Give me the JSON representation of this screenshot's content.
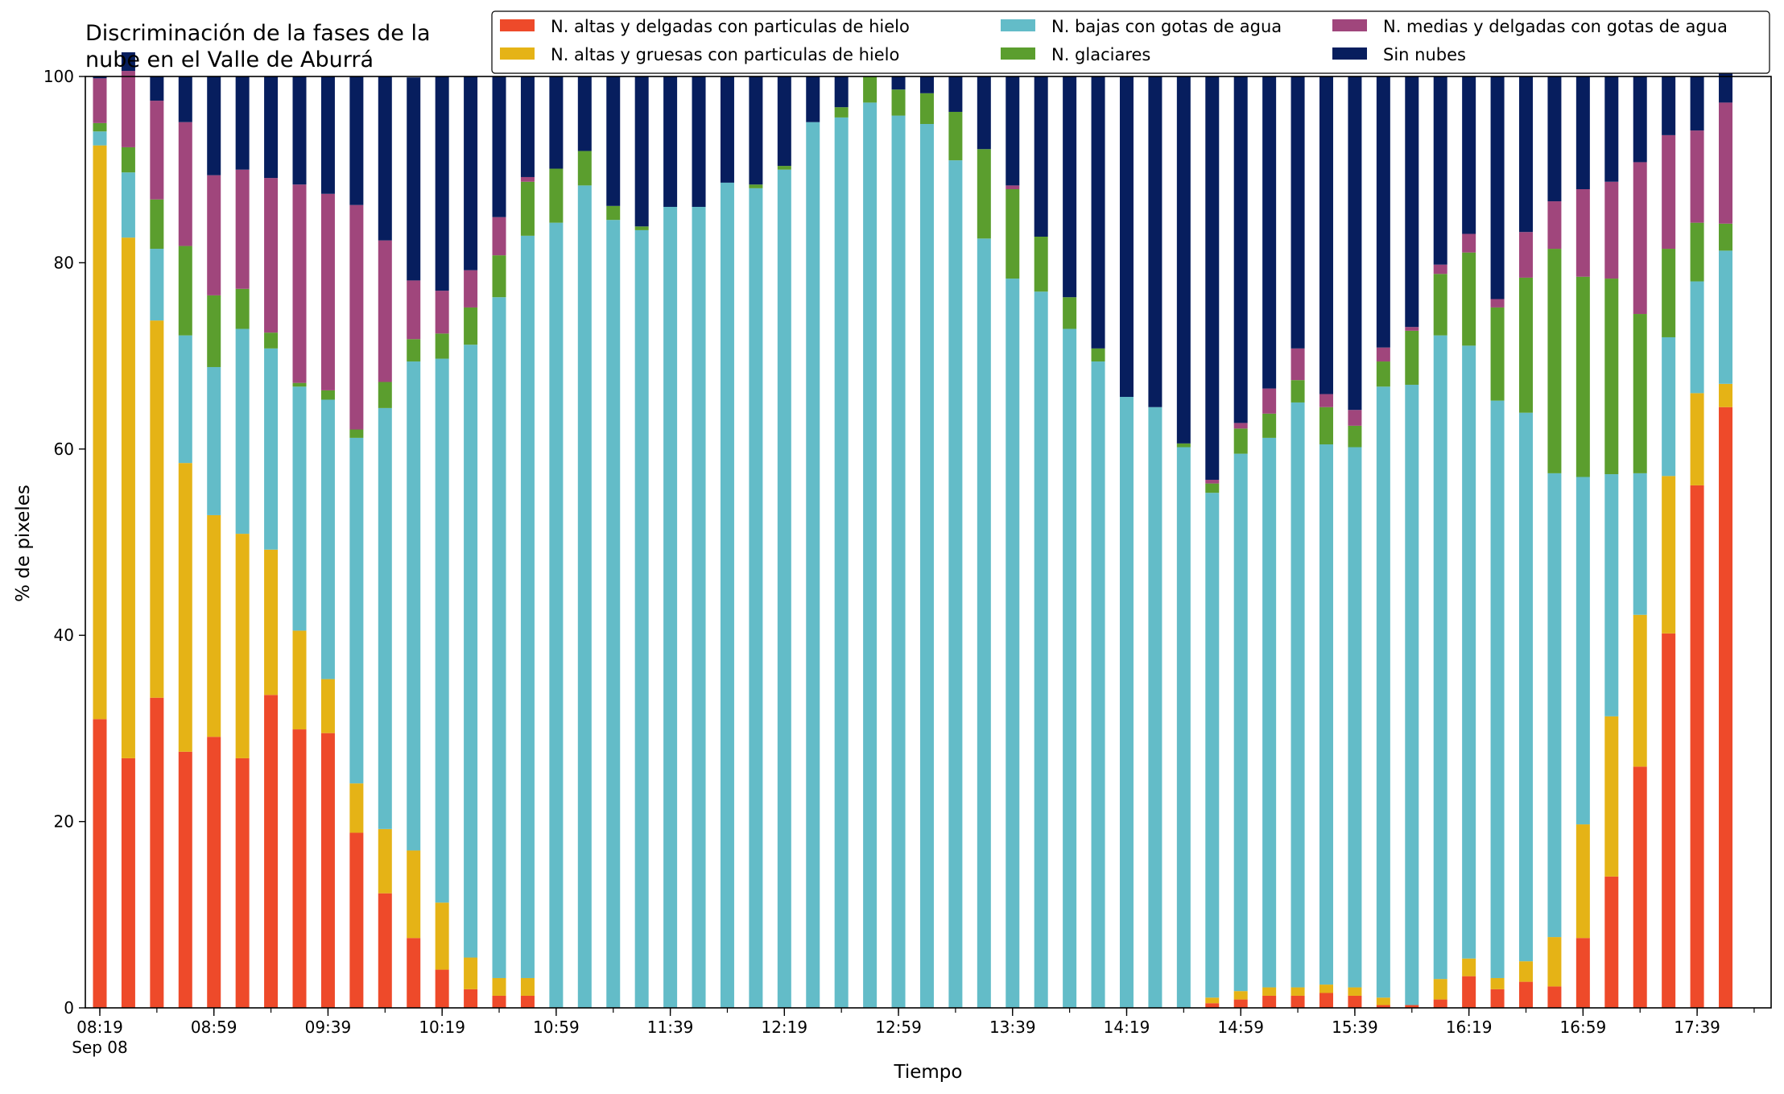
{
  "chart_data": {
    "type": "bar",
    "stacked": true,
    "title": "Discriminación de la fases de la nube en el Valle de Aburrá",
    "title_lines": [
      "Discriminación de la fases de la",
      "nube en el Valle de Aburrá"
    ],
    "xlabel": "Tiempo",
    "ylabel": "% de pixeles",
    "ylim": [
      0,
      100
    ],
    "yticks": [
      0,
      20,
      40,
      60,
      80,
      100
    ],
    "grid": false,
    "legend_position": "top-right",
    "x_start": "08:19",
    "x_step_minutes": 10,
    "xtick_labels": [
      "08:19",
      "08:59",
      "09:39",
      "10:19",
      "10:59",
      "11:39",
      "12:19",
      "12:59",
      "13:39",
      "14:19",
      "14:59",
      "15:39",
      "16:19",
      "16:59",
      "17:39"
    ],
    "xtick_date_label": "Sep 08",
    "categories": [
      "08:19",
      "08:29",
      "08:39",
      "08:49",
      "08:59",
      "09:09",
      "09:19",
      "09:29",
      "09:39",
      "09:49",
      "09:59",
      "10:09",
      "10:19",
      "10:29",
      "10:39",
      "10:49",
      "10:59",
      "11:09",
      "11:19",
      "11:29",
      "11:39",
      "11:49",
      "11:59",
      "12:09",
      "12:19",
      "12:29",
      "12:39",
      "12:49",
      "12:59",
      "13:09",
      "13:19",
      "13:29",
      "13:39",
      "13:49",
      "13:59",
      "14:09",
      "14:19",
      "14:29",
      "14:39",
      "14:49",
      "14:59",
      "15:09",
      "15:19",
      "15:29",
      "15:39",
      "15:49",
      "15:59",
      "16:09",
      "16:19",
      "16:29",
      "16:39",
      "16:49",
      "16:59",
      "17:09",
      "17:19",
      "17:29",
      "17:39",
      "17:49"
    ],
    "series": [
      {
        "name": "N. altas y delgadas con particulas de hielo",
        "color": "#ee4a2a",
        "values": [
          31,
          26.8,
          33.3,
          27.5,
          29.1,
          26.8,
          33.6,
          29.9,
          29.5,
          18.8,
          12.3,
          7.5,
          4.1,
          2,
          1.3,
          1.3,
          0,
          0,
          0,
          0,
          0,
          0,
          0,
          0,
          0,
          0,
          0,
          0,
          0,
          0,
          0,
          0,
          0,
          0,
          0,
          0,
          0,
          0,
          0,
          0.5,
          0.9,
          1.3,
          1.3,
          1.6,
          1.3,
          0.3,
          0.3,
          0.9,
          3.4,
          2,
          2.8,
          2.3,
          7.5,
          14.1,
          25.9,
          40.2,
          56.1,
          64.5
        ]
      },
      {
        "name": "N. altas y gruesas con particulas de hielo",
        "color": "#e5b316",
        "values": [
          61.6,
          55.9,
          40.5,
          31,
          23.8,
          24.1,
          15.6,
          10.6,
          5.8,
          5.3,
          6.9,
          9.4,
          7.2,
          3.4,
          1.9,
          1.9,
          0,
          0,
          0,
          0,
          0,
          0,
          0,
          0,
          0,
          0,
          0,
          0,
          0,
          0,
          0,
          0,
          0,
          0,
          0,
          0,
          0,
          0,
          0,
          0.6,
          0.9,
          0.9,
          0.9,
          0.9,
          0.9,
          0.8,
          0,
          2.2,
          1.9,
          1.2,
          2.2,
          5.3,
          12.2,
          17.2,
          16.3,
          16.9,
          9.9,
          2.5
        ]
      },
      {
        "name": "N. bajas con gotas de agua",
        "color": "#63bcc8",
        "values": [
          1.5,
          7,
          7.7,
          13.7,
          15.9,
          22,
          21.6,
          26.2,
          30,
          37.1,
          45.2,
          52.5,
          58.4,
          65.8,
          73.1,
          79.7,
          84.3,
          88.3,
          84.6,
          83.5,
          86,
          86,
          88.6,
          88,
          90,
          95.1,
          95.6,
          97.2,
          95.8,
          94.9,
          91,
          82.6,
          78.3,
          76.9,
          72.9,
          69.4,
          65.6,
          64.5,
          60.2,
          54.2,
          57.7,
          59,
          62.8,
          58,
          58,
          65.6,
          66.6,
          69.1,
          65.8,
          62,
          58.9,
          49.8,
          37.3,
          26,
          15.2,
          14.9,
          12,
          14.3
        ]
      },
      {
        "name": "N. glaciares",
        "color": "#5b9e2e",
        "values": [
          0.9,
          2.7,
          5.3,
          9.6,
          7.7,
          4.3,
          1.7,
          0.4,
          1,
          0.9,
          2.8,
          2.4,
          2.7,
          4,
          4.5,
          5.8,
          5.8,
          3.7,
          1.5,
          0.4,
          0,
          0,
          0,
          0.4,
          0.4,
          0,
          1.1,
          2.8,
          2.8,
          3.3,
          5.2,
          9.6,
          9.6,
          5.9,
          3.4,
          1.4,
          0,
          0,
          0.4,
          1,
          2.7,
          2.6,
          2.4,
          4,
          2.3,
          2.7,
          5.8,
          6.6,
          10,
          10,
          14.5,
          24.1,
          21.5,
          21,
          17.1,
          9.5,
          6.3,
          2.9
        ]
      },
      {
        "name": "N. medias y delgadas con gotas de agua",
        "color": "#a0467c",
        "values": [
          4.8,
          8.2,
          10.6,
          13.3,
          12.9,
          12.8,
          16.6,
          21.3,
          21.1,
          24.1,
          15.2,
          6.3,
          4.6,
          4,
          4.1,
          0.5,
          0,
          0,
          0,
          0,
          0,
          0,
          0,
          0,
          0,
          0,
          0,
          0,
          0,
          0,
          0,
          0,
          0.4,
          0,
          0,
          0,
          0,
          0,
          0,
          0.4,
          0.6,
          2.7,
          3.4,
          1.4,
          1.7,
          1.5,
          0.4,
          1,
          2,
          0.9,
          4.9,
          5.1,
          9.4,
          10.4,
          16.3,
          12.2,
          9.9,
          13
        ]
      },
      {
        "name": "Sin nubes",
        "color": "#071e5e",
        "values": [
          0.2,
          2,
          2.6,
          4.9,
          10.6,
          10,
          10.9,
          11.6,
          12.6,
          13.8,
          17.6,
          21.8,
          23,
          20.8,
          15.1,
          10.8,
          9.9,
          8,
          13.9,
          16.1,
          14,
          14,
          11.4,
          11.6,
          9.6,
          4.9,
          3.3,
          0,
          1.4,
          1.8,
          3.8,
          7.8,
          11.7,
          17.2,
          23.7,
          29.2,
          34.4,
          35.5,
          39.4,
          43.3,
          37.2,
          33.5,
          29.2,
          34.1,
          35.8,
          29.1,
          26.9,
          20.2,
          16.9,
          23.9,
          16.7,
          13.4,
          12.1,
          11.3,
          9.2,
          6.3,
          5.8,
          3.1
        ]
      }
    ]
  }
}
